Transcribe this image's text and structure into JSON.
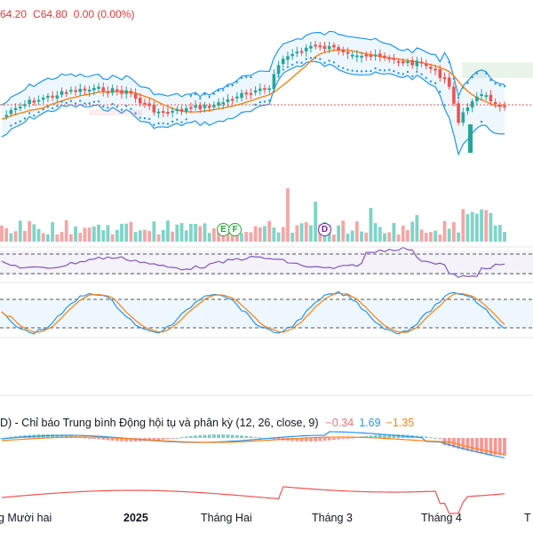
{
  "header": {
    "ohlc_h": "64.20",
    "ohlc_c": "C64.80",
    "change": "0.00 (0.00%)"
  },
  "markers": [
    {
      "letter": "E",
      "color": "#22ab32"
    },
    {
      "letter": "F",
      "color": "#22ab32"
    },
    {
      "letter": "D",
      "color": "#7b1fa2"
    }
  ],
  "macd": {
    "title": "D) - Chỉ báo Trung bình Động hội tụ và phân kỳ (12, 26, close, 9)",
    "v1": "−0.34",
    "v2": "1.69",
    "v3": "−1.35"
  },
  "xaxis": {
    "labels": [
      "g Mười hai",
      "2025",
      "Tháng Hai",
      "Tháng 3",
      "Tháng 4",
      "T"
    ]
  },
  "colors": {
    "up": "#26a69a",
    "down": "#ef5350",
    "bollinger": "#2196f3",
    "ma": "#ff7f0e",
    "rsi": "#7e57c2",
    "stoch_k": "#2196f3",
    "stoch_d": "#ff7f0e",
    "macd_diff": "#ef5350"
  }
}
